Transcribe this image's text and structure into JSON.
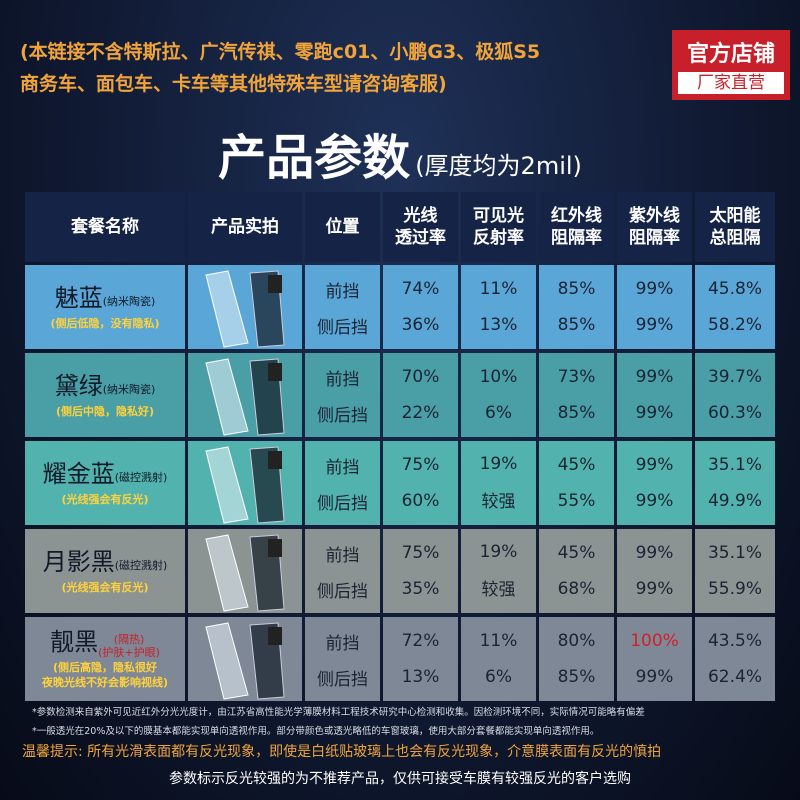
{
  "notice": {
    "lines": [
      "(本链接不含特斯拉、广汽传祺、零跑c01、小鹏G3、极狐S5",
      "商务车、面包车、卡车等其他特殊车型请咨询客服)"
    ]
  },
  "badge": {
    "title": "官方店铺",
    "subtitle": "厂家直营"
  },
  "heading": {
    "title": "产品参数",
    "note": "(厚度均为2mil)"
  },
  "table": {
    "headers": [
      [
        "套餐名称"
      ],
      [
        "产品实拍"
      ],
      [
        "位置"
      ],
      [
        "光线",
        "透过率"
      ],
      [
        "可见光",
        "反射率"
      ],
      [
        "红外线",
        "阻隔率"
      ],
      [
        "紫外线",
        "阻隔率"
      ],
      [
        "太阳能",
        "总阻隔"
      ]
    ],
    "groups": [
      {
        "name": "魅蓝",
        "tech": [
          "(纳米陶瓷)"
        ],
        "note": [
          "(侧后低隐，没有隐私)"
        ],
        "color": "#5aa6d6",
        "rows": [
          [
            "前挡",
            "74%",
            "11%",
            "85%",
            "99%",
            "45.8%"
          ],
          [
            "侧后挡",
            "36%",
            "13%",
            "85%",
            "99%",
            "58.2%"
          ]
        ]
      },
      {
        "name": "黛绿",
        "tech": [
          "(纳米陶瓷)"
        ],
        "note": [
          "(侧后中隐，隐私好)"
        ],
        "color": "#4a9ea6",
        "rows": [
          [
            "前挡",
            "70%",
            "10%",
            "73%",
            "99%",
            "39.7%"
          ],
          [
            "侧后挡",
            "22%",
            "6%",
            "85%",
            "99%",
            "60.3%"
          ]
        ]
      },
      {
        "name": "耀金蓝",
        "tech": [
          "(磁控溅射)"
        ],
        "note": [
          "(光线强会有反光)"
        ],
        "color": "#52b3ae",
        "rows": [
          [
            "前挡",
            "75%",
            "19%",
            "45%",
            "99%",
            "35.1%"
          ],
          [
            "侧后挡",
            "60%",
            "较强",
            "55%",
            "99%",
            "49.9%"
          ]
        ]
      },
      {
        "name": "月影黑",
        "tech": [
          "(磁控溅射)"
        ],
        "note": [
          "(光线强会有反光)"
        ],
        "color": "#8b9393",
        "rows": [
          [
            "前挡",
            "75%",
            "19%",
            "45%",
            "99%",
            "35.1%"
          ],
          [
            "侧后挡",
            "35%",
            "较强",
            "68%",
            "99%",
            "55.9%"
          ]
        ]
      },
      {
        "name": "靓黑",
        "tech": [
          "(隔热)",
          "(护肤+护眼)"
        ],
        "note": [
          "(侧后高隐，隐私很好",
          "夜晚光线不好会影响视线)"
        ],
        "color": "#7e8896",
        "rows": [
          [
            "前挡",
            "72%",
            "11%",
            "80%",
            "100%",
            "43.5%"
          ],
          [
            "侧后挡",
            "13%",
            "6%",
            "85%",
            "99%",
            "62.4%"
          ]
        ]
      }
    ]
  },
  "footnotes": [
    "*参数检测来自紫外可见近红外分光光度计，由江苏省高性能光学薄膜材料工程技术研究中心检测和收集。因检测环境不同，实际情况可能略有偏差",
    "*一般透光在20%及以下的膜基本都能实现单向透视作用。部分带颜色或透光略低的车窗玻璃，使用大部分套餐都能实现单向透视作用。"
  ],
  "tip": {
    "label": "温馨提示:",
    "text": "所有光滑表面都有反光现象，即使是白纸贴玻璃上也会有反光现象，介意膜表面有反光的慎拍"
  },
  "closing": "参数标示反光较强的为不推荐产品，仅供可接受车膜有较强反光的客户选购"
}
